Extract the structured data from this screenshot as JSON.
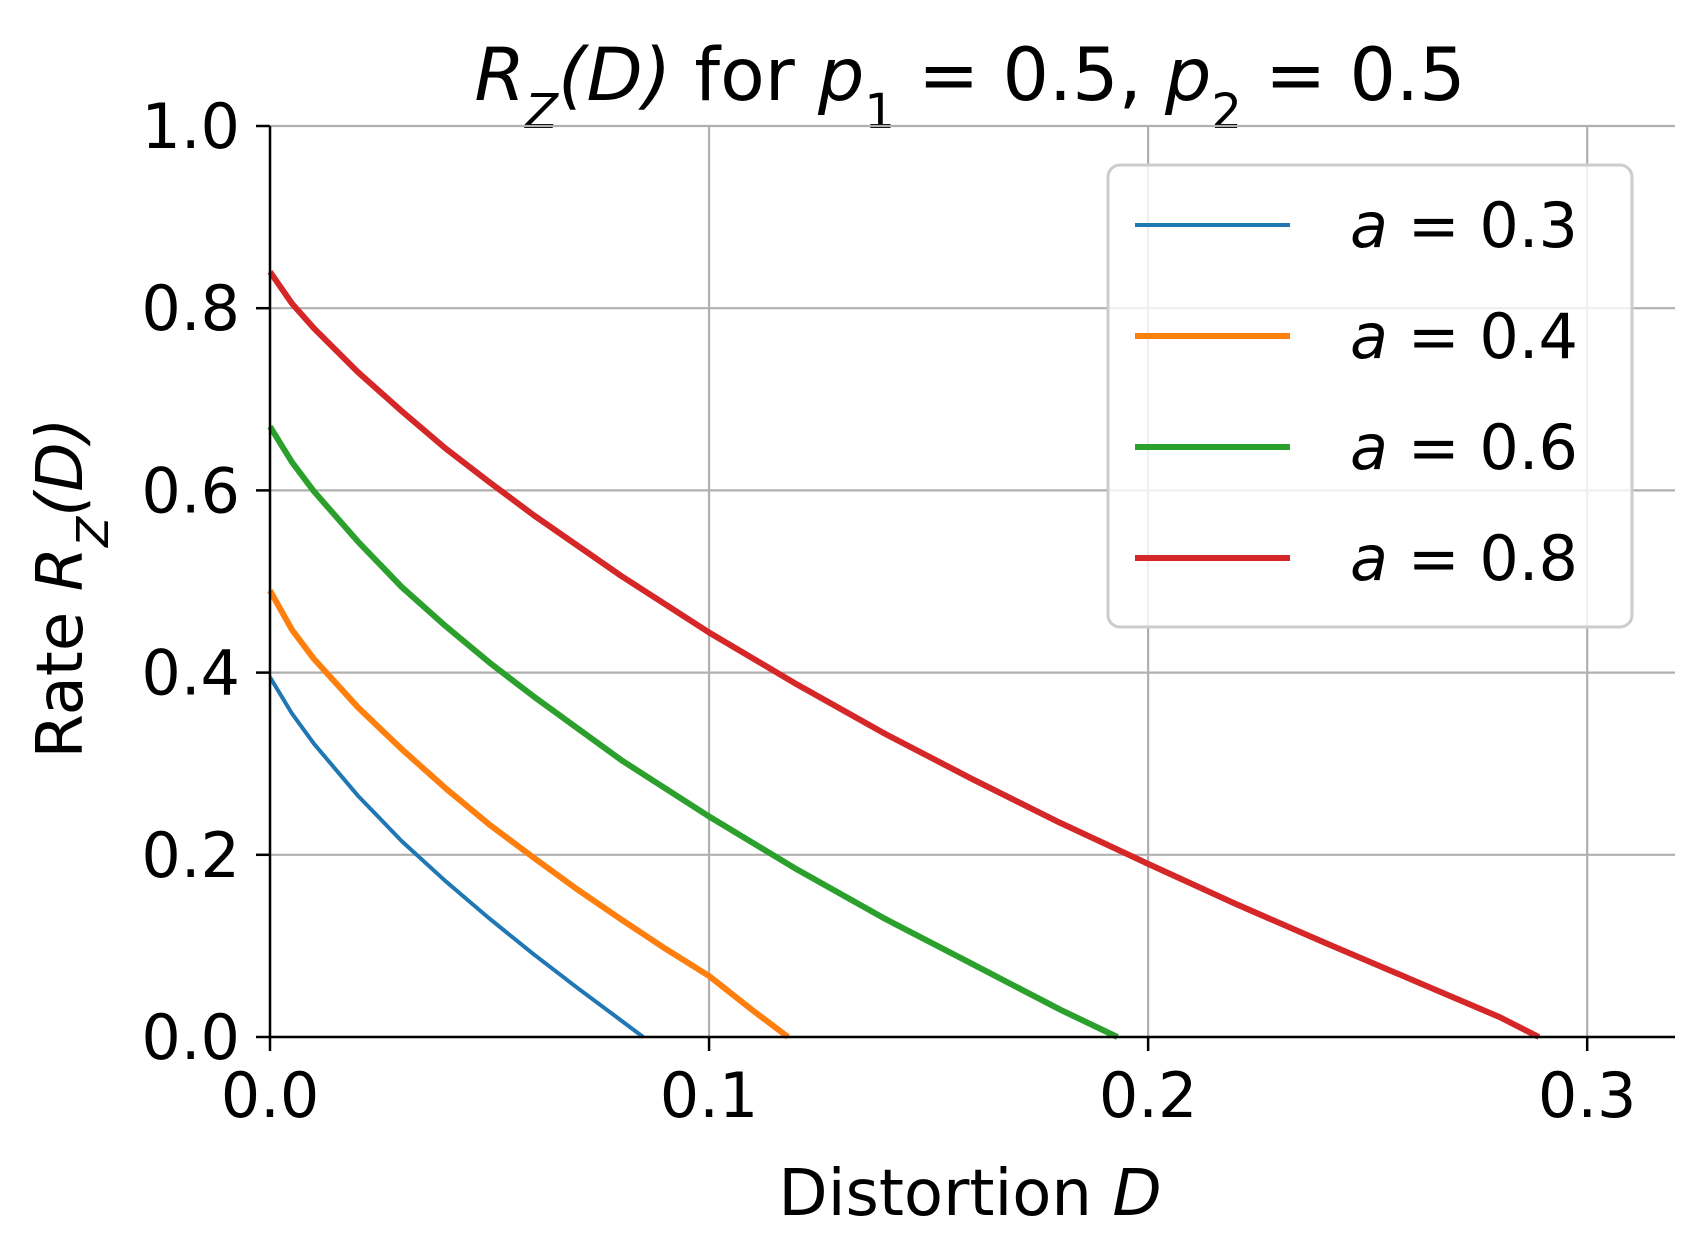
{
  "chart_data": {
    "type": "line",
    "title": {
      "var": "R",
      "sub": "Z",
      "arg": "(D)",
      "mid": " for ",
      "p1": "p",
      "p1_sub": "1",
      "eq1": " = 0.5, ",
      "p2": "p",
      "p2_sub": "2",
      "eq2": " = 0.5"
    },
    "xlabel": {
      "text": "Distortion ",
      "var": "D"
    },
    "ylabel": {
      "text": "Rate ",
      "var": "R",
      "sub": "Z",
      "arg": "(D)"
    },
    "xlim": [
      0,
      0.32
    ],
    "ylim": [
      0,
      1.0
    ],
    "xticks": [
      {
        "value": 0.0,
        "label": "0.0"
      },
      {
        "value": 0.1,
        "label": "0.1"
      },
      {
        "value": 0.2,
        "label": "0.2"
      },
      {
        "value": 0.3,
        "label": "0.3"
      }
    ],
    "yticks": [
      {
        "value": 0.0,
        "label": "0.0"
      },
      {
        "value": 0.2,
        "label": "0.2"
      },
      {
        "value": 0.4,
        "label": "0.4"
      },
      {
        "value": 0.6,
        "label": "0.6"
      },
      {
        "value": 0.8,
        "label": "0.8"
      },
      {
        "value": 1.0,
        "label": "1.0"
      }
    ],
    "grid": true,
    "legend_position": "top-right",
    "series": [
      {
        "name": "a = 0.3",
        "legend_var": "a",
        "legend_rest": " = 0.3",
        "color": "#1f77b4",
        "line_width": "thin",
        "x": [
          0.0,
          0.005,
          0.01,
          0.02,
          0.03,
          0.04,
          0.05,
          0.06,
          0.07,
          0.08,
          0.085
        ],
        "y": [
          0.395,
          0.355,
          0.322,
          0.265,
          0.215,
          0.171,
          0.13,
          0.091,
          0.054,
          0.018,
          0.0
        ]
      },
      {
        "name": "a = 0.4",
        "legend_var": "a",
        "legend_rest": " = 0.4",
        "color": "#ff7f0e",
        "line_width": "thick",
        "x": [
          0.0,
          0.005,
          0.01,
          0.02,
          0.03,
          0.04,
          0.05,
          0.06,
          0.07,
          0.08,
          0.09,
          0.1,
          0.11,
          0.118
        ],
        "y": [
          0.49,
          0.447,
          0.415,
          0.362,
          0.316,
          0.273,
          0.233,
          0.197,
          0.162,
          0.129,
          0.097,
          0.067,
          0.029,
          0.0
        ]
      },
      {
        "name": "a = 0.6",
        "legend_var": "a",
        "legend_rest": " = 0.6",
        "color": "#2ca02c",
        "line_width": "thick",
        "x": [
          0.0,
          0.005,
          0.01,
          0.02,
          0.03,
          0.04,
          0.05,
          0.06,
          0.08,
          0.1,
          0.12,
          0.14,
          0.16,
          0.18,
          0.193
        ],
        "y": [
          0.67,
          0.631,
          0.599,
          0.544,
          0.494,
          0.451,
          0.411,
          0.374,
          0.304,
          0.242,
          0.184,
          0.13,
          0.08,
          0.03,
          0.0
        ]
      },
      {
        "name": "a = 0.8",
        "legend_var": "a",
        "legend_rest": " = 0.8",
        "color": "#d62728",
        "line_width": "thick",
        "x": [
          0.0,
          0.005,
          0.01,
          0.02,
          0.03,
          0.04,
          0.05,
          0.06,
          0.08,
          0.1,
          0.12,
          0.14,
          0.16,
          0.18,
          0.2,
          0.22,
          0.24,
          0.26,
          0.28,
          0.289
        ],
        "y": [
          0.84,
          0.805,
          0.778,
          0.73,
          0.687,
          0.646,
          0.609,
          0.573,
          0.506,
          0.444,
          0.387,
          0.333,
          0.283,
          0.235,
          0.19,
          0.146,
          0.104,
          0.063,
          0.022,
          0.0
        ]
      }
    ]
  }
}
